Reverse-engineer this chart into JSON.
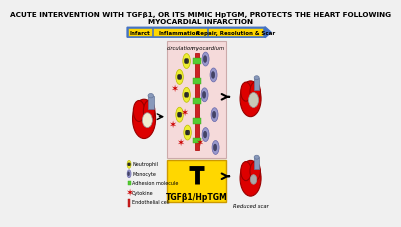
{
  "title_line1": "ACUTE INTERVENTION WITH TGFβ1, OR ITS MIMIC HpTGM, PROTECTS THE HEART FOLLOWING",
  "title_line2": "MYOCARDIAL INFARCTION",
  "arrow_labels": [
    "Infarct",
    "Inflammation",
    "Repair, Resolution & Scar"
  ],
  "arrow_color": "#4472C4",
  "arrow_yellow": "#FFD700",
  "tgf_label": "TGFβ1/HpTGM",
  "tgf_box_color": "#FFD700",
  "legend_items": [
    "Neutrophil",
    "Monocyte",
    "Adhesion molecule",
    "Cytokine",
    "Endothelial cell"
  ],
  "panel_bg": "#F5DADA",
  "circulation_label": "circulation",
  "myocardium_label": "myocardium",
  "heart_red": "#DD0000",
  "scar_light": "#F0ECD0",
  "scar_gray": "#AAAAAA",
  "background_color": "#F0F0F0",
  "title_fontsize": 5.2
}
